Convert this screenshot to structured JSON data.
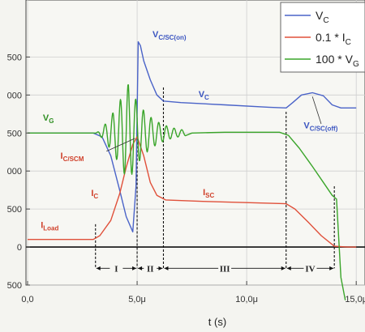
{
  "chart_data": {
    "type": "line",
    "xlabel": "t (s)",
    "x_ticks": [
      "0,0",
      "5,0μ",
      "10,0μ",
      "15,0μ"
    ],
    "y_ticks": [
      "500",
      "000",
      "500",
      "000",
      "500",
      "0",
      "500"
    ],
    "xlim": [
      0,
      15
    ],
    "ylim": [
      -500,
      3000
    ],
    "legend": {
      "placement": "top-right",
      "entries": [
        {
          "name": "V",
          "sub": "C",
          "color": "#4a63c8"
        },
        {
          "name": "0.1 * I",
          "sub": "C",
          "color": "#e0503a"
        },
        {
          "name": "100 * V",
          "sub": "G",
          "color": "#3aa52a"
        }
      ]
    },
    "series": [
      {
        "id": "vc",
        "color": "#4a63c8",
        "points": [
          [
            0,
            1500
          ],
          [
            3.0,
            1500
          ],
          [
            3.4,
            1450
          ],
          [
            3.8,
            1200
          ],
          [
            4.2,
            750
          ],
          [
            4.5,
            400
          ],
          [
            4.8,
            200
          ],
          [
            4.95,
            800
          ],
          [
            5.05,
            2700
          ],
          [
            5.15,
            2650
          ],
          [
            5.3,
            2450
          ],
          [
            5.6,
            2200
          ],
          [
            5.9,
            2000
          ],
          [
            6.2,
            1920
          ],
          [
            7,
            1900
          ],
          [
            9,
            1870
          ],
          [
            11,
            1840
          ],
          [
            11.8,
            1830
          ],
          [
            12.1,
            1900
          ],
          [
            12.5,
            2000
          ],
          [
            13.0,
            2030
          ],
          [
            13.5,
            1990
          ],
          [
            13.9,
            1870
          ],
          [
            14.3,
            1830
          ],
          [
            15,
            1830
          ]
        ]
      },
      {
        "id": "ic",
        "color": "#e0503a",
        "points": [
          [
            0,
            100
          ],
          [
            3.0,
            100
          ],
          [
            3.3,
            150
          ],
          [
            3.8,
            350
          ],
          [
            4.2,
            700
          ],
          [
            4.5,
            1050
          ],
          [
            4.8,
            1350
          ],
          [
            5.0,
            1450
          ],
          [
            5.3,
            1200
          ],
          [
            5.6,
            850
          ],
          [
            5.9,
            680
          ],
          [
            6.3,
            620
          ],
          [
            8,
            600
          ],
          [
            10,
            585
          ],
          [
            11.8,
            570
          ],
          [
            12.2,
            500
          ],
          [
            12.8,
            330
          ],
          [
            13.4,
            150
          ],
          [
            14.0,
            10
          ],
          [
            14.6,
            0
          ],
          [
            15,
            0
          ]
        ]
      },
      {
        "id": "vg",
        "color": "#3aa52a",
        "osc": {
          "t0": 3.1,
          "t1": 7.2,
          "period": 0.35,
          "peak_t": 4.6,
          "peak_amp": 650,
          "base": 1500
        },
        "points": [
          [
            0,
            1500
          ],
          [
            3.0,
            1500
          ],
          [
            7.5,
            1500
          ],
          [
            9,
            1510
          ],
          [
            11.5,
            1510
          ],
          [
            11.9,
            1470
          ],
          [
            12.4,
            1300
          ],
          [
            13.0,
            1060
          ],
          [
            13.5,
            850
          ],
          [
            13.9,
            680
          ],
          [
            14.1,
            630
          ],
          [
            14.3,
            -400
          ],
          [
            14.5,
            -700
          ]
        ]
      }
    ],
    "annotations": [
      {
        "text": "V",
        "sub": "C/SC(on)",
        "color": "#3b55c0",
        "x": 5.7,
        "y": 2760
      },
      {
        "text": "V",
        "sub": "C",
        "color": "#3b55c0",
        "x": 7.8,
        "y": 1970
      },
      {
        "text": "V",
        "sub": "C/SC(off)",
        "color": "#3b55c0",
        "x": 12.6,
        "y": 1560
      },
      {
        "text": "V",
        "sub": "G",
        "color": "#2f8f22",
        "x": 0.7,
        "y": 1660
      },
      {
        "text": "I",
        "sub": "C/SCM",
        "color": "#d0402a",
        "x": 1.5,
        "y": 1160
      },
      {
        "text": "I",
        "sub": "C",
        "color": "#d0402a",
        "x": 2.9,
        "y": 670
      },
      {
        "text": "I",
        "sub": "SC",
        "color": "#d0402a",
        "x": 8.0,
        "y": 680
      },
      {
        "text": "I",
        "sub": "Load",
        "color": "#d0402a",
        "x": 0.6,
        "y": 250
      }
    ],
    "phase_labels": [
      "I",
      "II",
      "III",
      "IV"
    ],
    "phase_bounds": [
      3.1,
      5.0,
      6.2,
      11.8,
      14.0
    ]
  }
}
